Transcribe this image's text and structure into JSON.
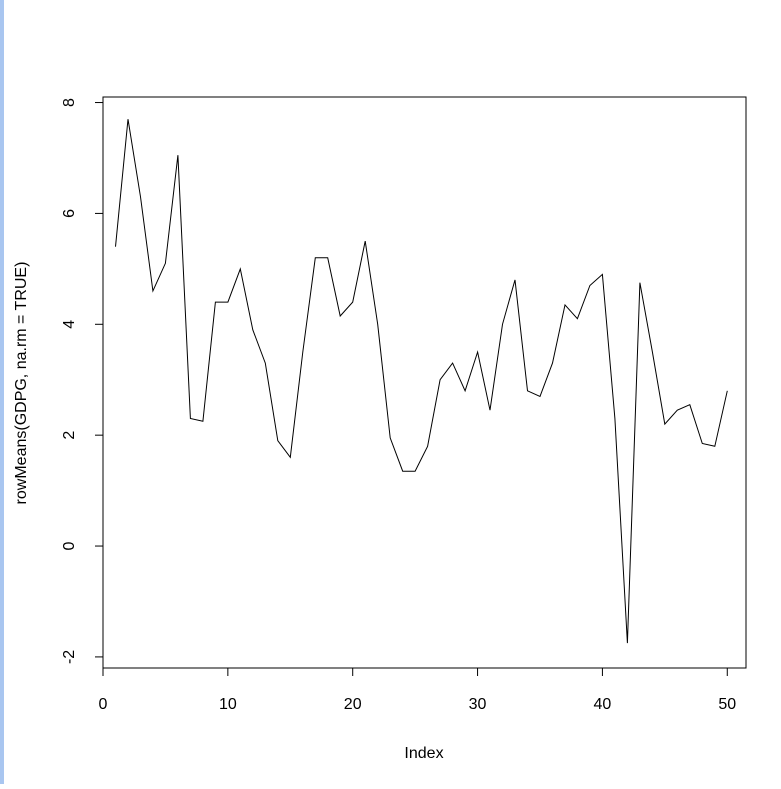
{
  "chart_data": {
    "type": "line",
    "xlabel": "Index",
    "ylabel": "rowMeans(GDPG, na.rm = TRUE)",
    "xlim": [
      0,
      51.5
    ],
    "ylim": [
      -2.2,
      8.1
    ],
    "xticks": [
      "0",
      "10",
      "20",
      "30",
      "40",
      "50"
    ],
    "yticks": [
      "-2",
      "0",
      "2",
      "4",
      "6",
      "8"
    ],
    "grid": false,
    "legend": "none",
    "x": [
      1,
      2,
      3,
      4,
      5,
      6,
      7,
      8,
      9,
      10,
      11,
      12,
      13,
      14,
      15,
      16,
      17,
      18,
      19,
      20,
      21,
      22,
      23,
      24,
      25,
      26,
      27,
      28,
      29,
      30,
      31,
      32,
      33,
      34,
      35,
      36,
      37,
      38,
      39,
      40,
      41,
      42,
      43,
      44,
      45,
      46,
      47,
      48,
      49,
      50
    ],
    "y": [
      5.4,
      7.7,
      6.3,
      4.6,
      5.1,
      7.05,
      2.3,
      2.25,
      4.4,
      4.4,
      5.0,
      3.9,
      3.3,
      1.9,
      1.6,
      3.5,
      5.2,
      5.2,
      4.15,
      4.4,
      5.5,
      4.0,
      1.95,
      1.35,
      1.35,
      1.8,
      3.0,
      3.3,
      2.8,
      3.5,
      2.45,
      4.0,
      4.8,
      2.8,
      2.7,
      3.3,
      4.35,
      4.1,
      4.7,
      4.9,
      2.3,
      -1.75,
      4.75,
      3.5,
      2.2,
      2.45,
      2.55,
      1.85,
      1.8,
      2.8
    ],
    "line_color": "#000000"
  }
}
